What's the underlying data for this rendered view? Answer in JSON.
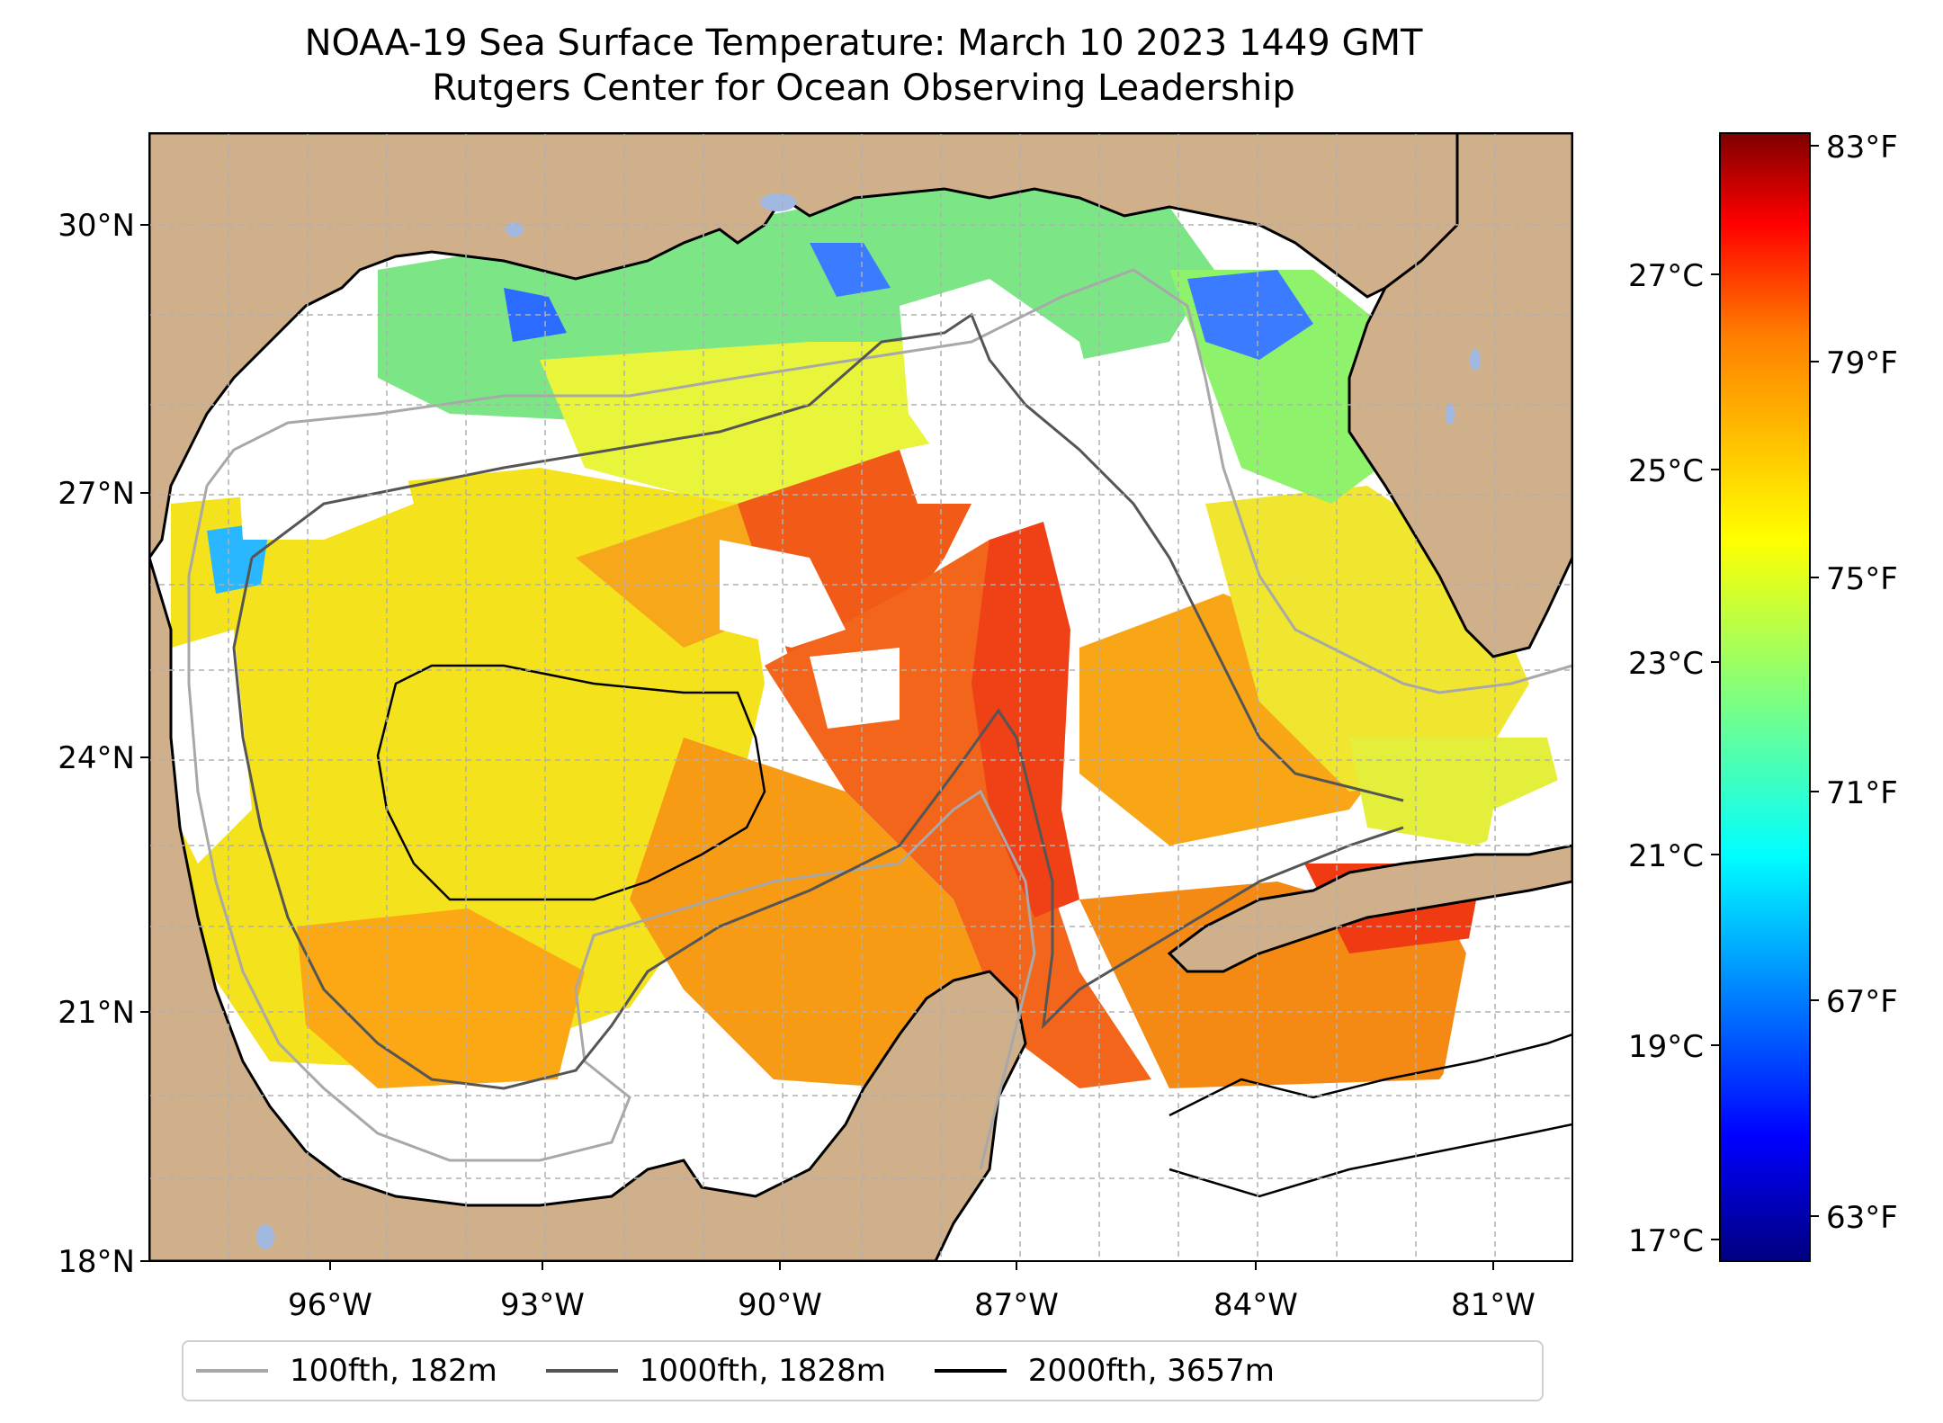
{
  "title": "NOAA-19 Sea Surface Temperature: March 10 2023 1449 GMT",
  "subtitle": "Rutgers Center for Ocean Observing Leadership",
  "axes": {
    "lat_labels": [
      "30°N",
      "27°N",
      "24°N",
      "21°N",
      "18°N"
    ],
    "lon_labels": [
      "96°W",
      "93°W",
      "90°W",
      "87°W",
      "84°W",
      "81°W"
    ],
    "lon_range": [
      -98.3,
      -80.3
    ],
    "lat_range": [
      18.0,
      31.0
    ]
  },
  "colorbar": {
    "celsius_labels": [
      "27°C",
      "25°C",
      "23°C",
      "21°C",
      "19°C",
      "17°C"
    ],
    "fahrenheit_labels": [
      "83°F",
      "79°F",
      "75°F",
      "71°F",
      "67°F",
      "63°F"
    ],
    "range_f": [
      62,
      84
    ],
    "colormap": [
      "#00007f",
      "#0000ff",
      "#00ffff",
      "#7fff7f",
      "#ffff00",
      "#ff7f00",
      "#ff0000",
      "#7f0000"
    ]
  },
  "legend": {
    "items": [
      {
        "label": "100fth, 182m",
        "color": "#a8a8a8"
      },
      {
        "label": "1000fth, 1828m",
        "color": "#555555"
      },
      {
        "label": "2000fth, 3657m",
        "color": "#000000"
      }
    ]
  },
  "colors": {
    "land": "#d0b08a",
    "lakes": "#a1b9e0",
    "clouds": "#ffffff"
  }
}
